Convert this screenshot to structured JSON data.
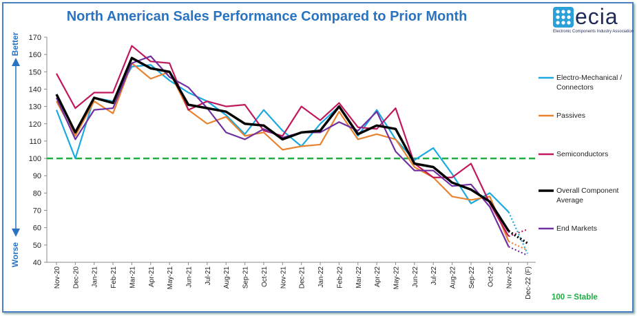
{
  "title": "North American Sales Performance Compared to Prior Month",
  "logo": {
    "name": "ecia",
    "subtitle": "Electronic Components Industry Association"
  },
  "axis_labels": {
    "better": "Better",
    "worse": "Worse"
  },
  "stable_note": "100 = Stable",
  "colors": {
    "electro_mechanical": "#1aa9e0",
    "passives": "#e8822e",
    "semiconductors": "#c0185c",
    "overall": "#000000",
    "end_markets": "#7030a0",
    "stable_line": "#22aa44",
    "axis": "#2a73c0"
  },
  "chart_data": {
    "type": "line",
    "title": "North American Sales Performance Compared to Prior Month",
    "xlabel": "",
    "ylabel": "",
    "ylim": [
      40,
      170
    ],
    "yticks": [
      40,
      50,
      60,
      70,
      80,
      90,
      100,
      110,
      120,
      130,
      140,
      150,
      160,
      170
    ],
    "grid": false,
    "legend_position": "right",
    "reference_line": {
      "value": 100,
      "label": "100 = Stable",
      "style": "dashed"
    },
    "categories": [
      "Nov-20",
      "Dec-20",
      "Jan-21",
      "Feb-21",
      "Mar-21",
      "Apr-21",
      "May-21",
      "Jun-21",
      "Jul-21",
      "Aug-21",
      "Sep-21",
      "Oct-21",
      "Nov-21",
      "Dec-21",
      "Jan-22",
      "Feb-22",
      "Mar-22",
      "Apr-22",
      "May-22",
      "Jun-22",
      "Jul-22",
      "Aug-22",
      "Sep-22",
      "Oct-22",
      "Nov-22",
      "Dec-22 (F)"
    ],
    "series": [
      {
        "name": "Electro-Mechanical / Connectors",
        "key": "electro_mechanical",
        "values": [
          128,
          100,
          135,
          133,
          153,
          154,
          145,
          138,
          133,
          125,
          114,
          128,
          116,
          107,
          120,
          130,
          113,
          128,
          111,
          99,
          106,
          91,
          74,
          80,
          69,
          45
        ],
        "forecast_from": 24
      },
      {
        "name": "Passives",
        "key": "passives",
        "values": [
          133,
          113,
          133,
          126,
          155,
          146,
          150,
          128,
          120,
          124,
          113,
          115,
          105,
          107,
          108,
          127,
          111,
          114,
          111,
          95,
          89,
          78,
          76,
          78,
          52,
          47
        ],
        "forecast_from": 24
      },
      {
        "name": "Semiconductors",
        "key": "semiconductors",
        "values": [
          149,
          129,
          138,
          138,
          165,
          156,
          155,
          128,
          133,
          130,
          131,
          116,
          113,
          130,
          122,
          132,
          118,
          117,
          129,
          97,
          89,
          89,
          97,
          74,
          55,
          59
        ],
        "forecast_from": 24
      },
      {
        "name": "Overall Component Average",
        "key": "overall",
        "values": [
          137,
          115,
          135,
          132,
          158,
          152,
          150,
          131,
          129,
          127,
          120,
          119,
          111,
          115,
          116,
          130,
          114,
          119,
          117,
          97,
          95,
          86,
          82,
          75,
          58,
          51
        ],
        "forecast_from": 24
      },
      {
        "name": "End Markets",
        "key": "end_markets",
        "values": [
          135,
          111,
          128,
          129,
          155,
          159,
          147,
          141,
          129,
          115,
          111,
          117,
          112,
          115,
          115,
          121,
          116,
          127,
          104,
          93,
          93,
          84,
          85,
          72,
          49,
          44
        ],
        "forecast_from": 24
      }
    ]
  }
}
